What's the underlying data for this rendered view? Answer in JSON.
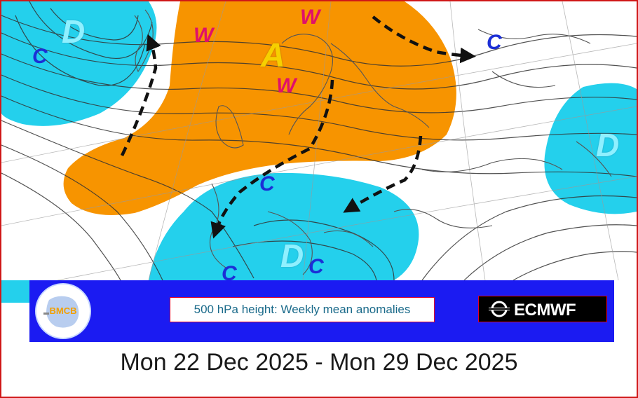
{
  "map": {
    "labels": {
      "d_nw": "D",
      "d_east": "D",
      "d_south": "D",
      "a_center": "A",
      "w1": "W",
      "w2": "W",
      "w3": "W",
      "c1": "C",
      "c2": "C",
      "c3": "C",
      "c4": "C",
      "c5": "C"
    },
    "colors": {
      "positive_anomaly": "#f79400",
      "negative_anomaly": "#24d0ec",
      "arrows": "#111111",
      "contours": "#333333",
      "coastlines": "#555555"
    }
  },
  "banner": {
    "logo_text": "BMCB",
    "caption": "500 hPa height: Weekly mean anomalies",
    "brand": "ECMWF"
  },
  "date_range": "Mon 22 Dec 2025 - Mon 29 Dec 2025"
}
